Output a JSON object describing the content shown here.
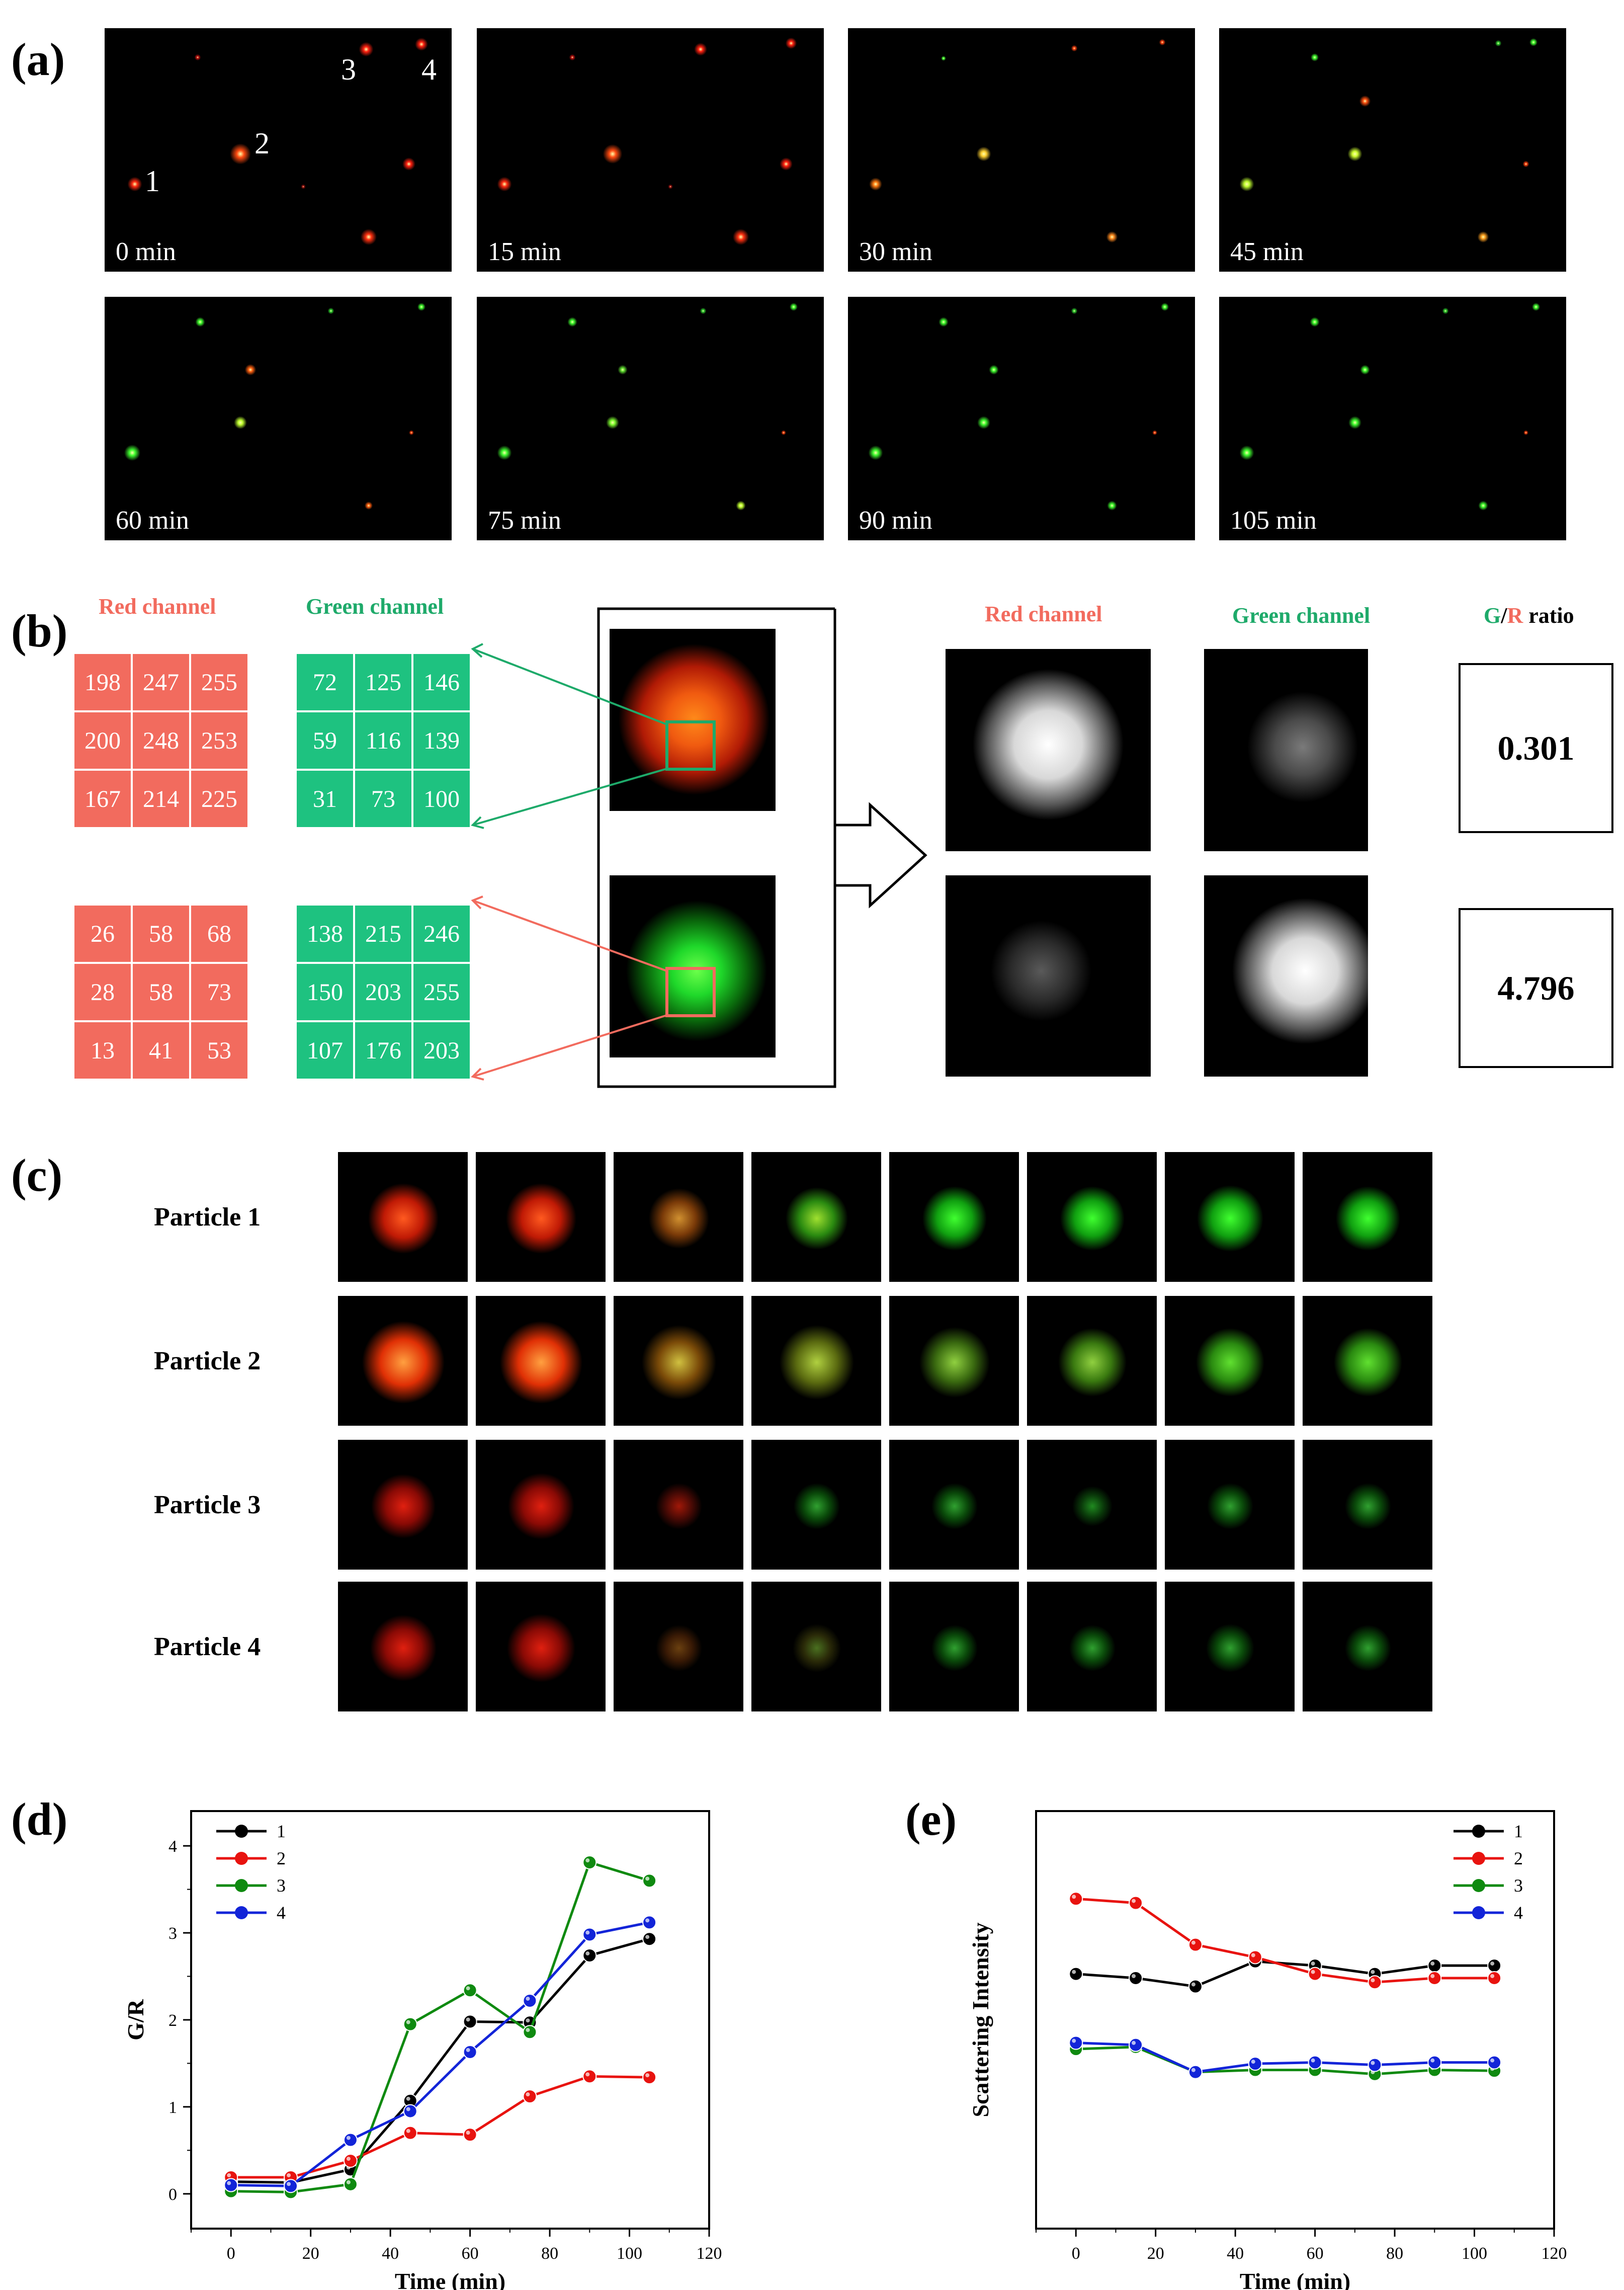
{
  "panel_a": {
    "label": "(a)",
    "frames": [
      "0 min",
      "15 min",
      "30 min",
      "45 min",
      "60 min",
      "75 min",
      "90 min",
      "105 min"
    ],
    "particle_numbers": [
      "1",
      "2",
      "3",
      "4"
    ]
  },
  "panel_b": {
    "label": "(b)",
    "red_channel_label": "Red channel",
    "green_channel_label": "Green channel",
    "top_red": [
      "198",
      "247",
      "255",
      "200",
      "248",
      "253",
      "167",
      "214",
      "225"
    ],
    "top_green": [
      "72",
      "125",
      "146",
      "59",
      "116",
      "139",
      "31",
      "73",
      "100"
    ],
    "bottom_red": [
      "26",
      "58",
      "68",
      "28",
      "58",
      "73",
      "13",
      "41",
      "53"
    ],
    "bottom_green": [
      "138",
      "215",
      "246",
      "150",
      "203",
      "255",
      "107",
      "176",
      "203"
    ],
    "ratio_label_g": "G",
    "ratio_label_slash": "/",
    "ratio_label_r": "R",
    "ratio_label_word": " ratio",
    "ratio_top": "0.301",
    "ratio_bottom": "4.796"
  },
  "panel_c": {
    "label": "(c)",
    "rows": [
      "Particle 1",
      "Particle 2",
      "Particle 3",
      "Particle 4"
    ]
  },
  "chart_data": [
    {
      "type": "line",
      "panel": "(d)",
      "xlabel": "Time (min)",
      "ylabel": "G/R",
      "xlim": [
        -10,
        120
      ],
      "ylim": [
        -0.4,
        4.4
      ],
      "xticks": [
        0,
        20,
        40,
        60,
        80,
        100,
        120
      ],
      "yticks": [
        0,
        1,
        2,
        3,
        4
      ],
      "x": [
        0,
        15,
        30,
        45,
        60,
        75,
        90,
        105
      ],
      "series": [
        {
          "name": "1",
          "color": "#000000",
          "values": [
            0.14,
            0.13,
            0.28,
            1.07,
            1.98,
            1.97,
            2.74,
            2.93
          ]
        },
        {
          "name": "2",
          "color": "#e8130f",
          "values": [
            0.19,
            0.19,
            0.38,
            0.7,
            0.68,
            1.12,
            1.35,
            1.34
          ]
        },
        {
          "name": "3",
          "color": "#0f8a10",
          "values": [
            0.03,
            0.02,
            0.11,
            1.95,
            2.34,
            1.86,
            3.81,
            3.6
          ]
        },
        {
          "name": "4",
          "color": "#1224d8",
          "values": [
            0.1,
            0.09,
            0.62,
            0.95,
            1.63,
            2.22,
            2.98,
            3.12
          ]
        }
      ],
      "legend": "top-left"
    },
    {
      "type": "line",
      "panel": "(e)",
      "xlabel": "Time (min)",
      "ylabel": "Scattering Intensity",
      "xlim": [
        -10,
        120
      ],
      "ylim": [
        0,
        10
      ],
      "xticks": [
        0,
        20,
        40,
        60,
        80,
        100,
        120
      ],
      "yticks": [],
      "x": [
        0,
        15,
        30,
        45,
        60,
        75,
        90,
        105
      ],
      "series": [
        {
          "name": "1",
          "color": "#000000",
          "values": [
            6.1,
            6.0,
            5.8,
            6.4,
            6.3,
            6.1,
            6.3,
            6.3
          ]
        },
        {
          "name": "2",
          "color": "#e8130f",
          "values": [
            7.9,
            7.8,
            6.8,
            6.5,
            6.1,
            5.9,
            6.0,
            6.0
          ]
        },
        {
          "name": "3",
          "color": "#0f8a10",
          "values": [
            4.3,
            4.35,
            3.75,
            3.8,
            3.8,
            3.7,
            3.8,
            3.78
          ]
        },
        {
          "name": "4",
          "color": "#1224d8",
          "values": [
            4.45,
            4.4,
            3.75,
            3.95,
            3.98,
            3.92,
            3.98,
            3.98
          ]
        }
      ],
      "legend": "top-right"
    }
  ]
}
